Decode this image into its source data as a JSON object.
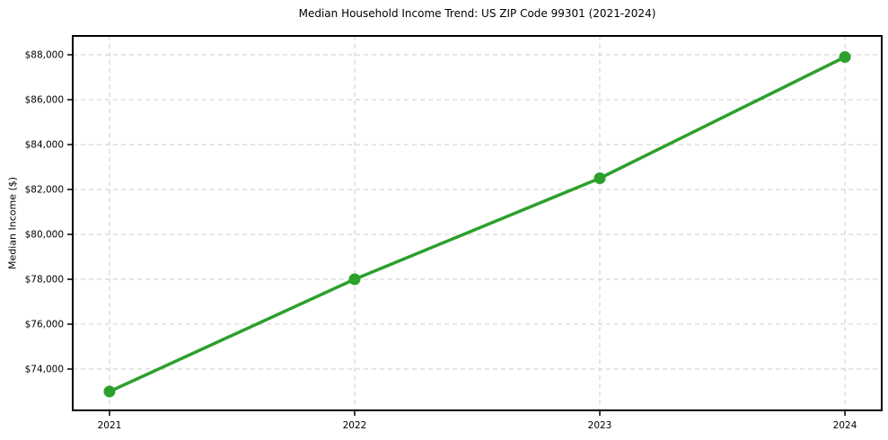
{
  "chart_data": {
    "type": "line",
    "title": "Median Household Income Trend: US ZIP Code 99301 (2021-2024)",
    "xlabel": "",
    "ylabel": "Median Income ($)",
    "x": [
      2021,
      2022,
      2023,
      2024
    ],
    "series": [
      {
        "name": "Median Income",
        "values": [
          73000,
          78000,
          82500,
          87900
        ]
      }
    ],
    "xticks": [
      2021,
      2022,
      2023,
      2024
    ],
    "xtick_labels": [
      "2021",
      "2022",
      "2023",
      "2024"
    ],
    "yticks": [
      74000,
      76000,
      78000,
      80000,
      82000,
      84000,
      86000,
      88000
    ],
    "ytick_labels": [
      "$74,000",
      "$76,000",
      "$78,000",
      "$80,000",
      "$82,000",
      "$84,000",
      "$86,000",
      "$88,000"
    ],
    "xlim": [
      2020.85,
      2024.15
    ],
    "ylim": [
      72160,
      88840
    ],
    "grid": true,
    "legend_position": "none",
    "line_color": "#2ca02c",
    "marker": "o",
    "marker_color": "#2ca02c",
    "grid_color": "#cccccc",
    "axis_color": "#000000",
    "tick_label_color": "#000000",
    "background_color": "#ffffff"
  }
}
